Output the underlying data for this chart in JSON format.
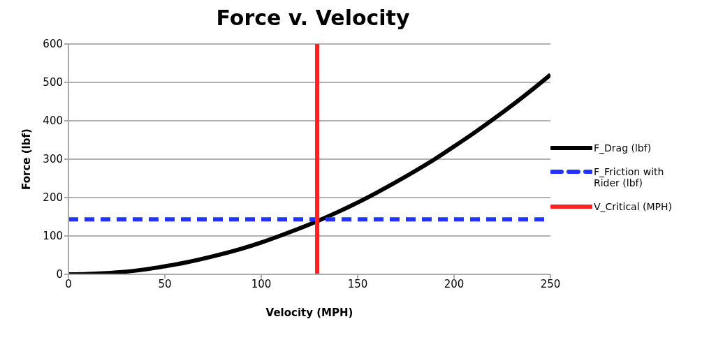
{
  "chart_data": {
    "type": "line",
    "title": "Force v. Velocity",
    "xlabel": "Velocity (MPH)",
    "ylabel": "Force (lbf)",
    "xlim": [
      0,
      250
    ],
    "xticks": [
      0,
      50,
      100,
      150,
      200,
      250
    ],
    "ylim": [
      0,
      600
    ],
    "yticks": [
      0,
      100,
      200,
      300,
      400,
      500,
      600
    ],
    "grid": "y",
    "legend": "right",
    "marker": "none",
    "series": [
      {
        "name": "F_Drag (lbf)",
        "color": "#000000",
        "line_style": "solid",
        "x": [
          0,
          10,
          25,
          40,
          50,
          60,
          75,
          90,
          100,
          110,
          125,
          140,
          150,
          160,
          175,
          190,
          200,
          210,
          225,
          240,
          250
        ],
        "values": [
          0,
          1,
          5,
          13,
          21,
          30,
          47,
          67,
          83,
          101,
          130,
          163,
          187,
          213,
          255,
          300,
          333,
          367,
          421,
          479,
          520
        ]
      },
      {
        "name": "F_Friction with Rider (lbf)",
        "color": "#2233ff",
        "line_style": "dashed",
        "x": [
          0,
          250
        ],
        "values": [
          143,
          143
        ]
      },
      {
        "name": "V_Critical (MPH)",
        "color": "#ff2222",
        "line_style": "solid",
        "x": [
          129,
          129
        ],
        "values": [
          0,
          600
        ]
      }
    ]
  }
}
